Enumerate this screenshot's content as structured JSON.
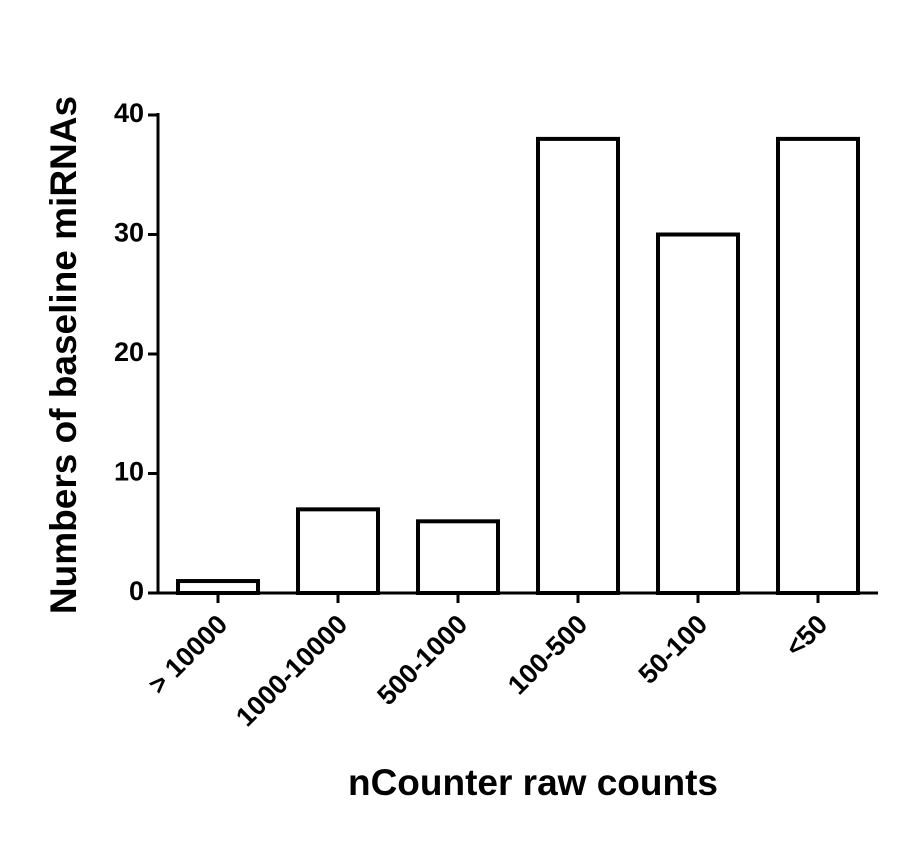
{
  "chart_data": {
    "type": "bar",
    "x_label": "nCounter raw counts",
    "y_label": "Numbers of baseline miRNAs",
    "categories": [
      "> 10000",
      "1000-10000",
      "500-1000",
      "100-500",
      "50-100",
      "<50"
    ],
    "values": [
      1,
      7,
      6,
      38,
      30,
      38
    ],
    "color": "#ffffff",
    "edgecolor": "#000000",
    "ylim": [
      0,
      40
    ],
    "yticks": [
      0,
      10,
      20,
      30,
      40
    ],
    "grid": false
  }
}
